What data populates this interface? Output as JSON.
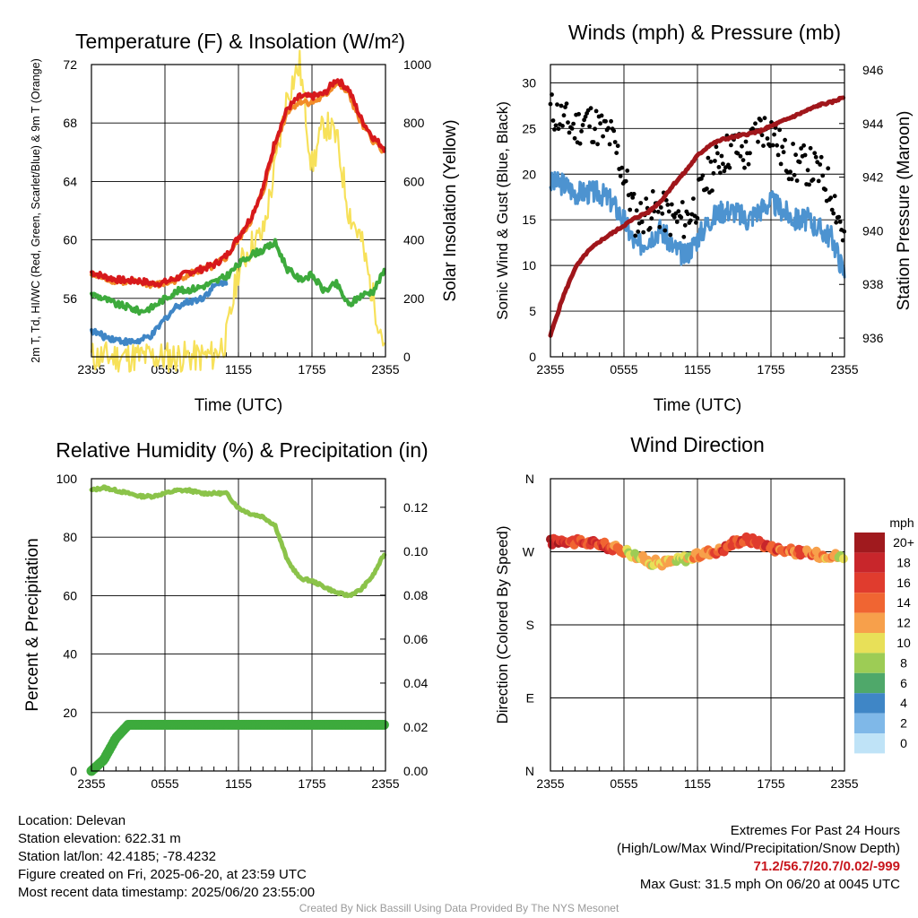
{
  "chart_data": [
    {
      "type": "line",
      "title": "Temperature (F) & Insolation (W/m²)",
      "xlabel": "Time (UTC)",
      "ylabel_left": "2m T, Td, HI/WC (Red, Green, Scarlet/Blue) & 9m T (Orange)",
      "ylabel_right": "Solar Insolation (Yellow)",
      "x_ticks": [
        "2355",
        "0555",
        "1155",
        "1755",
        "2355"
      ],
      "ylim_left": [
        52,
        72
      ],
      "yticks_left": [
        "56",
        "60",
        "64",
        "68",
        "72"
      ],
      "ylim_right": [
        0,
        1000
      ],
      "yticks_right": [
        "0",
        "200",
        "400",
        "600",
        "800",
        "1000"
      ],
      "x_hours": [
        0,
        1,
        2,
        3,
        4,
        5,
        6,
        7,
        8,
        9,
        10,
        11,
        12,
        13,
        14,
        15,
        16,
        17,
        18,
        19,
        20,
        21,
        22,
        23,
        24
      ],
      "series": [
        {
          "name": "2m T",
          "color": "#d7191c",
          "axis": "left",
          "values": [
            57.8,
            57.5,
            57.3,
            57.2,
            57.2,
            57.0,
            57.1,
            57.4,
            57.8,
            58.0,
            58.3,
            58.9,
            60.2,
            61.5,
            63.5,
            66.8,
            69.0,
            69.8,
            69.8,
            70.0,
            71.0,
            70.3,
            68.3,
            67.0,
            66.2
          ]
        },
        {
          "name": "9m T",
          "color": "#f28c28",
          "axis": "left",
          "values": [
            57.6,
            57.4,
            57.2,
            57.1,
            57.1,
            56.9,
            57.0,
            57.3,
            57.7,
            57.9,
            58.2,
            58.8,
            60.0,
            61.3,
            63.3,
            66.5,
            68.8,
            69.5,
            69.4,
            69.8,
            70.8,
            70.0,
            68.0,
            66.8,
            66.0
          ]
        },
        {
          "name": "Td",
          "color": "#3daa3c",
          "axis": "left",
          "values": [
            56.3,
            56.0,
            55.6,
            55.4,
            55.1,
            55.4,
            56.0,
            56.5,
            56.6,
            56.8,
            57.1,
            57.5,
            58.3,
            59.0,
            59.3,
            59.8,
            58.0,
            57.3,
            57.6,
            56.5,
            57.0,
            55.5,
            56.2,
            56.5,
            58.0
          ]
        },
        {
          "name": "HI/WC",
          "color": "#3f86c6",
          "axis": "left",
          "values": [
            53.8,
            53.4,
            53.2,
            53.0,
            53.1,
            53.5,
            54.6,
            55.5,
            55.8,
            56.0,
            56.8,
            57.2
          ]
        },
        {
          "name": "Solar Insolation",
          "color": "#f7e15a",
          "axis": "right",
          "values": [
            0,
            0,
            0,
            0,
            0,
            0,
            0,
            0,
            0,
            0,
            5,
            60,
            300,
            380,
            420,
            650,
            900,
            1000,
            650,
            800,
            750,
            500,
            400,
            200,
            30
          ]
        }
      ]
    },
    {
      "type": "line",
      "title": "Winds (mph) & Pressure (mb)",
      "xlabel": "Time (UTC)",
      "ylabel_left": "Sonic Wind & Gust (Blue, Black)",
      "ylabel_right": "Station Pressure (Maroon)",
      "x_ticks": [
        "2355",
        "0555",
        "1155",
        "1755",
        "2355"
      ],
      "ylim_left": [
        0,
        32
      ],
      "yticks_left": [
        "0",
        "5",
        "10",
        "15",
        "20",
        "25",
        "30"
      ],
      "ylim_right": [
        935.3,
        946.2
      ],
      "yticks_right": [
        "936",
        "938",
        "940",
        "942",
        "944",
        "946"
      ],
      "x_hours": [
        0,
        1,
        2,
        3,
        4,
        5,
        6,
        7,
        8,
        9,
        10,
        11,
        12,
        13,
        14,
        15,
        16,
        17,
        18,
        19,
        20,
        21,
        22,
        23,
        24
      ],
      "series": [
        {
          "name": "Sonic Wind",
          "color": "#4d93d0",
          "axis": "left",
          "values": [
            19,
            19,
            18,
            18,
            18,
            17,
            15,
            12,
            13,
            14,
            12,
            11,
            13,
            15,
            16,
            16,
            15,
            16,
            17,
            16,
            15,
            15,
            14,
            13,
            9
          ]
        },
        {
          "name": "Gust",
          "color": "#000000",
          "axis": "left",
          "style": "points",
          "values": [
            27,
            26,
            25,
            26,
            25,
            24,
            20,
            15,
            16,
            16,
            15,
            15,
            17,
            20,
            22,
            23,
            22,
            25,
            25,
            22,
            21,
            21,
            20,
            18,
            13
          ]
        },
        {
          "name": "Station Pressure",
          "color": "#a0161b",
          "axis": "right",
          "values": [
            936.1,
            937.5,
            938.6,
            939.2,
            939.6,
            939.9,
            940.2,
            940.5,
            940.7,
            941.1,
            941.7,
            942.2,
            942.8,
            943.2,
            943.4,
            943.5,
            943.6,
            943.7,
            943.9,
            944.1,
            944.3,
            944.5,
            944.7,
            944.8,
            945.0
          ]
        }
      ]
    },
    {
      "type": "line",
      "title": "Relative Humidity (%) & Precipitation (in)",
      "xlabel": "",
      "ylabel_left": "Percent & Precipitation",
      "x_ticks": [
        "2355",
        "0555",
        "1155",
        "1755",
        "2355"
      ],
      "ylim_left": [
        0,
        100
      ],
      "yticks_left": [
        "0",
        "20",
        "40",
        "60",
        "80",
        "100"
      ],
      "ylim_right": [
        0,
        0.133
      ],
      "yticks_right": [
        "0.00",
        "0.02",
        "0.04",
        "0.06",
        "0.08",
        "0.10",
        "0.12"
      ],
      "x_hours": [
        0,
        1,
        2,
        3,
        4,
        5,
        6,
        7,
        8,
        9,
        10,
        11,
        12,
        13,
        14,
        15,
        16,
        17,
        18,
        19,
        20,
        21,
        22,
        23,
        24
      ],
      "series": [
        {
          "name": "Relative Humidity",
          "color": "#8bc34a",
          "axis": "left",
          "values": [
            96,
            97,
            96,
            95,
            94,
            94,
            95,
            96,
            96,
            95,
            95,
            95,
            90,
            88,
            87,
            84,
            72,
            66,
            65,
            63,
            61,
            60,
            62,
            67,
            75
          ]
        },
        {
          "name": "Precipitation",
          "color": "#3daa3c",
          "axis": "right",
          "values": [
            0.0,
            0.005,
            0.015,
            0.021,
            0.021,
            0.021,
            0.021,
            0.021,
            0.021,
            0.021,
            0.021,
            0.021,
            0.021,
            0.021,
            0.021,
            0.021,
            0.021,
            0.021,
            0.021,
            0.021,
            0.021,
            0.021,
            0.021,
            0.021,
            0.021
          ]
        }
      ]
    },
    {
      "type": "scatter",
      "title": "Wind Direction",
      "xlabel": "",
      "ylabel_left": "Direction (Colored By Speed)",
      "x_ticks": [
        "2355",
        "0555",
        "1155",
        "1755",
        "2355"
      ],
      "y_categories": [
        "N",
        "E",
        "S",
        "W",
        "N"
      ],
      "ylim_left": [
        0,
        360
      ],
      "legend_title": "mph",
      "legend_labels": [
        "20+",
        "18",
        "16",
        "14",
        "12",
        "10",
        "8",
        "6",
        "4",
        "2",
        "0"
      ],
      "legend_colors": [
        "#a01a1e",
        "#c8262b",
        "#e03c2e",
        "#f06532",
        "#f7a04b",
        "#e8e058",
        "#9dcc55",
        "#4fa86a",
        "#3f86c6",
        "#7fb8e8",
        "#bfe3f7"
      ],
      "legend_placement": "right",
      "x_hours": [
        0,
        1,
        2,
        3,
        4,
        5,
        6,
        7,
        8,
        9,
        10,
        11,
        12,
        13,
        14,
        15,
        16,
        17,
        18,
        19,
        20,
        21,
        22,
        23,
        24
      ],
      "direction": [
        282,
        285,
        282,
        281,
        280,
        275,
        272,
        265,
        258,
        256,
        258,
        262,
        265,
        270,
        272,
        282,
        285,
        282,
        275,
        272,
        270,
        268,
        266,
        266,
        262
      ],
      "speed": [
        19,
        18,
        17,
        17,
        16,
        16,
        13,
        11,
        12,
        12,
        11,
        10,
        13,
        15,
        16,
        16,
        16,
        17,
        17,
        16,
        15,
        15,
        14,
        13,
        9
      ]
    }
  ],
  "footer_left": [
    "Location: Delevan",
    "Station elevation: 622.31 m",
    "Station lat/lon: 42.4185; -78.4232",
    "Figure created on Fri, 2025-06-20, at 23:59 UTC",
    "Most recent data timestamp: 2025/06/20 23:55:00"
  ],
  "extremes": {
    "heading": "Extremes For Past 24 Hours",
    "subheading": "(High/Low/Max Wind/Precipitation/Snow Depth)",
    "values": "71.2/56.7/20.7/0.02/-999",
    "max_gust": "Max Gust: 31.5 mph On 06/20 at 0045 UTC"
  },
  "credit": "Created By Nick Bassill Using Data Provided By The NYS Mesonet",
  "colors": {
    "accent": "#c8161d"
  }
}
